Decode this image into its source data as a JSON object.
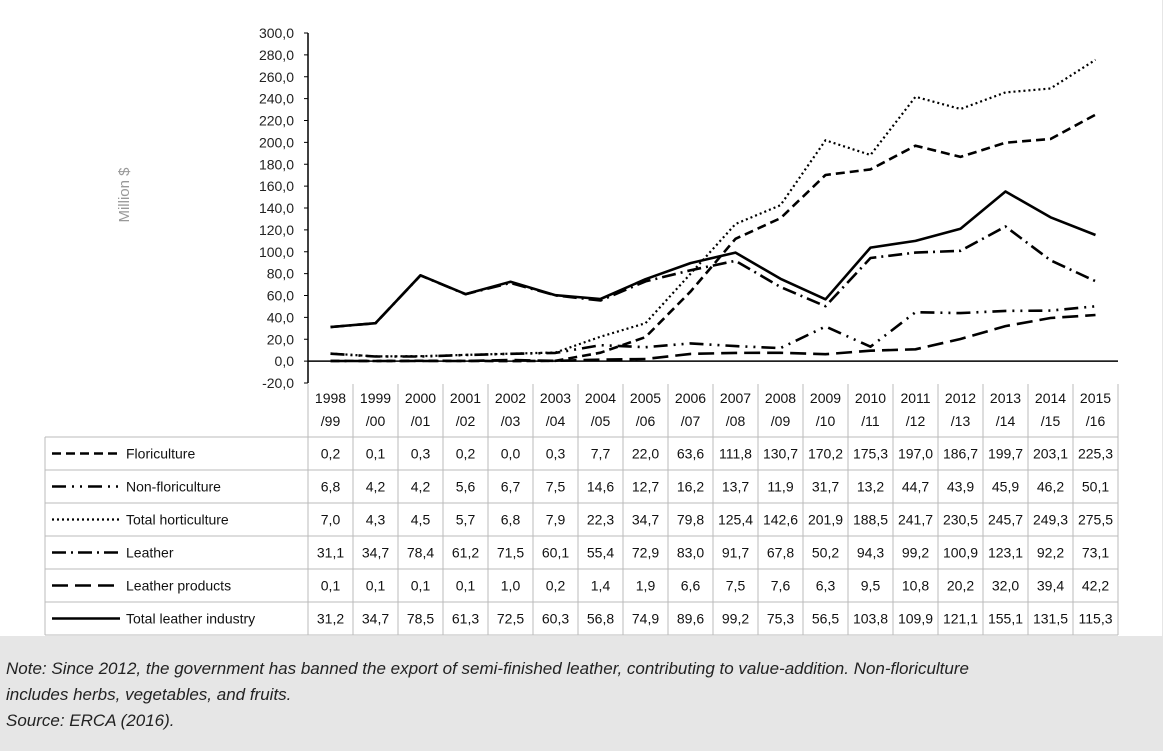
{
  "chart_data": {
    "type": "line",
    "ylabel": "Million $",
    "ylim": [
      -20,
      300
    ],
    "ytick_labels": [
      "300,0",
      "280,0",
      "260,0",
      "240,0",
      "220,0",
      "200,0",
      "180,0",
      "160,0",
      "140,0",
      "120,0",
      "100,0",
      "80,0",
      "60,0",
      "40,0",
      "20,0",
      "0,0",
      "-20,0"
    ],
    "categories": [
      [
        "1998",
        "/99"
      ],
      [
        "1999",
        "/00"
      ],
      [
        "2000",
        "/01"
      ],
      [
        "2001",
        "/02"
      ],
      [
        "2002",
        "/03"
      ],
      [
        "2003",
        "/04"
      ],
      [
        "2004",
        "/05"
      ],
      [
        "2005",
        "/06"
      ],
      [
        "2006",
        "/07"
      ],
      [
        "2007",
        "/08"
      ],
      [
        "2008",
        "/09"
      ],
      [
        "2009",
        "/10"
      ],
      [
        "2010",
        "/11"
      ],
      [
        "2011",
        "/12"
      ],
      [
        "2012",
        "/13"
      ],
      [
        "2013",
        "/14"
      ],
      [
        "2014",
        "/15"
      ],
      [
        "2015",
        "/16"
      ]
    ],
    "series": [
      {
        "name": "Floriculture",
        "dash": "dash",
        "values": [
          0.2,
          0.1,
          0.3,
          0.2,
          0.0,
          0.3,
          7.7,
          22.0,
          63.6,
          111.8,
          130.7,
          170.2,
          175.3,
          197.0,
          186.7,
          199.7,
          203.1,
          225.3
        ],
        "labels": [
          "0,2",
          "0,1",
          "0,3",
          "0,2",
          "0,0",
          "0,3",
          "7,7",
          "22,0",
          "63,6",
          "111,8",
          "130,7",
          "170,2",
          "175,3",
          "197,0",
          "186,7",
          "199,7",
          "203,1",
          "225,3"
        ]
      },
      {
        "name": "Non-floriculture",
        "dash": "dashdotdot",
        "values": [
          6.8,
          4.2,
          4.2,
          5.6,
          6.7,
          7.5,
          14.6,
          12.7,
          16.2,
          13.7,
          11.9,
          31.7,
          13.2,
          44.7,
          43.9,
          45.9,
          46.2,
          50.1
        ],
        "labels": [
          "6,8",
          "4,2",
          "4,2",
          "5,6",
          "6,7",
          "7,5",
          "14,6",
          "12,7",
          "16,2",
          "13,7",
          "11,9",
          "31,7",
          "13,2",
          "44,7",
          "43,9",
          "45,9",
          "46,2",
          "50,1"
        ]
      },
      {
        "name": "Total horticulture",
        "dash": "dot",
        "values": [
          7.0,
          4.3,
          4.5,
          5.7,
          6.8,
          7.9,
          22.3,
          34.7,
          79.8,
          125.4,
          142.6,
          201.9,
          188.5,
          241.7,
          230.5,
          245.7,
          249.3,
          275.5
        ],
        "labels": [
          "7,0",
          "4,3",
          "4,5",
          "5,7",
          "6,8",
          "7,9",
          "22,3",
          "34,7",
          "79,8",
          "125,4",
          "142,6",
          "201,9",
          "188,5",
          "241,7",
          "230,5",
          "245,7",
          "249,3",
          "275,5"
        ]
      },
      {
        "name": "Leather",
        "dash": "dashdot",
        "values": [
          31.1,
          34.7,
          78.4,
          61.2,
          71.5,
          60.1,
          55.4,
          72.9,
          83.0,
          91.7,
          67.8,
          50.2,
          94.3,
          99.2,
          100.9,
          123.1,
          92.2,
          73.1
        ],
        "labels": [
          "31,1",
          "34,7",
          "78,4",
          "61,2",
          "71,5",
          "60,1",
          "55,4",
          "72,9",
          "83,0",
          "91,7",
          "67,8",
          "50,2",
          "94,3",
          "99,2",
          "100,9",
          "123,1",
          "92,2",
          "73,1"
        ]
      },
      {
        "name": "Leather products",
        "dash": "longdash",
        "values": [
          0.1,
          0.1,
          0.1,
          0.1,
          1.0,
          0.2,
          1.4,
          1.9,
          6.6,
          7.5,
          7.6,
          6.3,
          9.5,
          10.8,
          20.2,
          32.0,
          39.4,
          42.2
        ],
        "labels": [
          "0,1",
          "0,1",
          "0,1",
          "0,1",
          "1,0",
          "0,2",
          "1,4",
          "1,9",
          "6,6",
          "7,5",
          "7,6",
          "6,3",
          "9,5",
          "10,8",
          "20,2",
          "32,0",
          "39,4",
          "42,2"
        ]
      },
      {
        "name": "Total leather industry",
        "dash": "solid",
        "values": [
          31.2,
          34.7,
          78.5,
          61.3,
          72.5,
          60.3,
          56.8,
          74.9,
          89.6,
          99.2,
          75.3,
          56.5,
          103.8,
          109.9,
          121.1,
          155.1,
          131.5,
          115.3
        ],
        "labels": [
          "31,2",
          "34,7",
          "78,5",
          "61,3",
          "72,5",
          "60,3",
          "56,8",
          "74,9",
          "89,6",
          "99,2",
          "75,3",
          "56,5",
          "103,8",
          "109,9",
          "121,1",
          "155,1",
          "131,5",
          "115,3"
        ]
      }
    ]
  },
  "notes": {
    "note_line1": "Note: Since 2012, the government has banned the export of semi-finished leather, contributing to value-addition. Non-floriculture",
    "note_line2": "includes herbs, vegetables, and fruits.",
    "source": "Source: ERCA (2016)."
  }
}
